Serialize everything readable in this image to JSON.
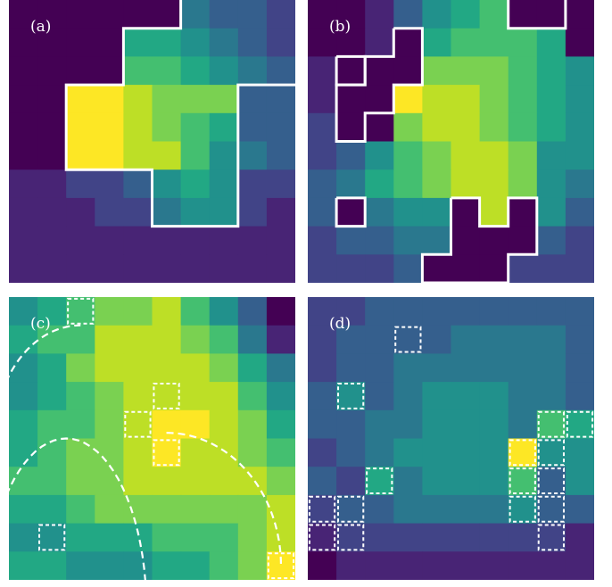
{
  "palette": [
    "#440154",
    "#482475",
    "#414487",
    "#355f8d",
    "#2a788e",
    "#21918c",
    "#22a884",
    "#44bf70",
    "#7ad151",
    "#bddf26",
    "#fde725"
  ],
  "panels": [
    {
      "id": "a",
      "label": "(a)",
      "grid": [
        [
          0,
          0,
          0,
          0,
          0,
          0,
          4,
          3,
          3,
          2
        ],
        [
          0,
          0,
          0,
          0,
          6,
          6,
          5,
          4,
          3,
          2
        ],
        [
          0,
          0,
          0,
          0,
          7,
          7,
          6,
          5,
          4,
          3
        ],
        [
          0,
          0,
          10,
          10,
          9,
          8,
          8,
          8,
          3,
          3
        ],
        [
          0,
          0,
          10,
          10,
          9,
          8,
          7,
          6,
          3,
          3
        ],
        [
          0,
          0,
          10,
          10,
          9,
          9,
          7,
          5,
          4,
          3
        ],
        [
          1,
          1,
          2,
          2,
          3,
          5,
          6,
          5,
          2,
          2
        ],
        [
          1,
          1,
          1,
          2,
          2,
          4,
          5,
          5,
          2,
          1
        ],
        [
          1,
          1,
          1,
          1,
          1,
          1,
          1,
          1,
          1,
          1
        ],
        [
          1,
          1,
          1,
          1,
          1,
          1,
          1,
          1,
          1,
          1
        ]
      ],
      "outline_style": "solid",
      "outlines": [
        [
          [
            6,
            0
          ],
          [
            6,
            1
          ],
          [
            4,
            1
          ],
          [
            4,
            3
          ],
          [
            2,
            3
          ],
          [
            2,
            6
          ],
          [
            5,
            6
          ],
          [
            5,
            8
          ],
          [
            8,
            8
          ],
          [
            8,
            3
          ],
          [
            10,
            3
          ]
        ]
      ],
      "boxes": []
    },
    {
      "id": "b",
      "label": "(b)",
      "grid": [
        [
          0,
          0,
          1,
          3,
          5,
          6,
          7,
          0,
          0,
          0
        ],
        [
          0,
          0,
          1,
          0,
          6,
          7,
          7,
          7,
          6,
          0
        ],
        [
          1,
          0,
          0,
          0,
          8,
          8,
          8,
          7,
          6,
          5
        ],
        [
          1,
          0,
          0,
          10,
          9,
          9,
          8,
          7,
          6,
          5
        ],
        [
          2,
          0,
          0,
          8,
          9,
          9,
          8,
          7,
          6,
          5
        ],
        [
          2,
          3,
          5,
          7,
          8,
          9,
          9,
          8,
          5,
          5
        ],
        [
          3,
          4,
          6,
          7,
          8,
          9,
          9,
          8,
          5,
          4
        ],
        [
          3,
          0,
          4,
          5,
          5,
          0,
          9,
          0,
          5,
          3
        ],
        [
          2,
          3,
          3,
          4,
          4,
          0,
          0,
          0,
          3,
          2
        ],
        [
          2,
          2,
          2,
          3,
          0,
          0,
          0,
          2,
          2,
          2
        ]
      ],
      "outline_style": "solid",
      "outlines": [
        [
          [
            7,
            0
          ],
          [
            7,
            1
          ],
          [
            9,
            1
          ],
          [
            9,
            0
          ]
        ],
        [
          [
            3,
            1
          ],
          [
            4,
            1
          ],
          [
            4,
            3
          ],
          [
            3,
            3
          ],
          [
            3,
            4
          ],
          [
            2,
            4
          ],
          [
            2,
            5
          ],
          [
            1,
            5
          ],
          [
            1,
            3
          ],
          [
            2,
            3
          ],
          [
            2,
            2
          ],
          [
            3,
            2
          ],
          [
            3,
            1
          ]
        ],
        [
          [
            1,
            2
          ],
          [
            2,
            2
          ],
          [
            2,
            3
          ],
          [
            1,
            3
          ],
          [
            1,
            2
          ]
        ],
        [
          [
            1,
            7
          ],
          [
            2,
            7
          ],
          [
            2,
            8
          ],
          [
            1,
            8
          ],
          [
            1,
            7
          ]
        ],
        [
          [
            5,
            7
          ],
          [
            6,
            7
          ],
          [
            6,
            8
          ],
          [
            7,
            8
          ],
          [
            7,
            7
          ],
          [
            8,
            7
          ],
          [
            8,
            9
          ],
          [
            7,
            9
          ],
          [
            7,
            10
          ],
          [
            4,
            10
          ],
          [
            4,
            9
          ],
          [
            5,
            9
          ],
          [
            5,
            7
          ]
        ]
      ],
      "boxes": []
    },
    {
      "id": "c",
      "label": "(c)",
      "grid": [
        [
          5,
          6,
          7,
          8,
          8,
          9,
          7,
          5,
          3,
          0
        ],
        [
          6,
          7,
          7,
          9,
          9,
          9,
          8,
          7,
          4,
          1
        ],
        [
          5,
          6,
          8,
          9,
          9,
          9,
          9,
          8,
          6,
          4
        ],
        [
          5,
          6,
          7,
          8,
          9,
          9,
          9,
          9,
          7,
          5
        ],
        [
          6,
          7,
          7,
          8,
          9,
          10,
          10,
          9,
          8,
          6
        ],
        [
          6,
          7,
          8,
          8,
          9,
          10,
          9,
          9,
          8,
          7
        ],
        [
          7,
          7,
          8,
          8,
          9,
          9,
          9,
          9,
          9,
          8
        ],
        [
          6,
          6,
          7,
          8,
          8,
          8,
          8,
          8,
          8,
          9
        ],
        [
          5,
          5,
          6,
          6,
          6,
          7,
          7,
          7,
          8,
          9
        ],
        [
          6,
          6,
          5,
          5,
          5,
          6,
          6,
          7,
          8,
          10
        ]
      ],
      "outline_style": "dashed",
      "outlines": [],
      "arcs": [
        {
          "cx": 2.5,
          "cy": 5,
          "rx": 3,
          "ry": 4,
          "from": 180,
          "to": 270
        },
        {
          "cx": 2,
          "cy": 11,
          "rx": 2.8,
          "ry": 6,
          "from": 180,
          "to": 360
        },
        {
          "cx": 5.5,
          "cy": 9.5,
          "rx": 4,
          "ry": 4.7,
          "from": 270,
          "to": 360
        }
      ],
      "boxes": [
        [
          2,
          0
        ],
        [
          5,
          3
        ],
        [
          4,
          4
        ],
        [
          5,
          5
        ],
        [
          1,
          8
        ],
        [
          9,
          9
        ]
      ]
    },
    {
      "id": "d",
      "label": "(d)",
      "grid": [
        [
          2,
          2,
          3,
          3,
          3,
          3,
          3,
          3,
          3,
          3
        ],
        [
          2,
          3,
          3,
          3,
          3,
          4,
          4,
          4,
          4,
          3
        ],
        [
          2,
          3,
          3,
          4,
          4,
          4,
          4,
          4,
          4,
          3
        ],
        [
          3,
          5,
          3,
          4,
          5,
          5,
          5,
          4,
          4,
          3
        ],
        [
          3,
          3,
          4,
          4,
          5,
          5,
          5,
          4,
          7,
          6
        ],
        [
          2,
          3,
          4,
          5,
          5,
          5,
          5,
          10,
          5,
          5
        ],
        [
          3,
          2,
          6,
          4,
          5,
          5,
          5,
          7,
          3,
          5
        ],
        [
          2,
          3,
          3,
          4,
          4,
          4,
          4,
          5,
          3,
          3
        ],
        [
          1,
          2,
          2,
          2,
          2,
          2,
          2,
          2,
          2,
          1
        ],
        [
          0,
          1,
          1,
          1,
          1,
          1,
          1,
          1,
          1,
          1
        ]
      ],
      "outline_style": "dashed",
      "outlines": [],
      "boxes": [
        [
          3,
          1
        ],
        [
          1,
          3
        ],
        [
          2,
          6
        ],
        [
          1,
          7
        ],
        [
          0,
          7
        ],
        [
          1,
          8
        ],
        [
          0,
          8
        ],
        [
          8,
          4
        ],
        [
          9,
          4
        ],
        [
          7,
          5
        ],
        [
          8,
          5
        ],
        [
          7,
          6
        ],
        [
          8,
          6
        ],
        [
          7,
          7
        ],
        [
          8,
          7
        ],
        [
          8,
          8
        ]
      ]
    }
  ]
}
